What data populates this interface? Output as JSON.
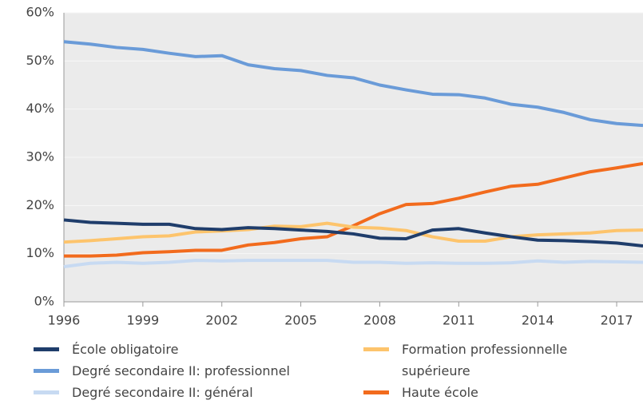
{
  "chart_data": {
    "type": "line",
    "x": [
      1996,
      1997,
      1998,
      1999,
      2000,
      2001,
      2002,
      2003,
      2004,
      2005,
      2006,
      2007,
      2008,
      2009,
      2010,
      2011,
      2012,
      2013,
      2014,
      2015,
      2016,
      2017,
      2018
    ],
    "xlim": [
      1996,
      2018
    ],
    "xticks": [
      1996,
      1999,
      2002,
      2005,
      2008,
      2011,
      2014,
      2017
    ],
    "ylim": [
      0,
      60
    ],
    "yticks": [
      {
        "value": 0,
        "label": "0%"
      },
      {
        "value": 10,
        "label": "10%"
      },
      {
        "value": 20,
        "label": "20%"
      },
      {
        "value": 30,
        "label": "30%"
      },
      {
        "value": 40,
        "label": "40%"
      },
      {
        "value": 50,
        "label": "50%"
      },
      {
        "value": 60,
        "label": "60%"
      }
    ],
    "grid": true,
    "series": [
      {
        "name": "École obligatoire",
        "color": "#1f3d6b",
        "values": [
          17,
          16.5,
          16.3,
          16.1,
          16.1,
          15.2,
          15,
          15.4,
          15.2,
          14.9,
          14.6,
          14.1,
          13.2,
          13.1,
          14.9,
          15.2,
          14.3,
          13.5,
          12.8,
          12.7,
          12.5,
          12.2,
          11.6
        ]
      },
      {
        "name": "Degré secondaire II: professionnel",
        "color": "#6a9bd8",
        "values": [
          54,
          53.5,
          52.8,
          52.4,
          51.6,
          50.9,
          51.1,
          49.2,
          48.4,
          48,
          47,
          46.5,
          45,
          44,
          43.1,
          43,
          42.3,
          41,
          40.4,
          39.3,
          37.8,
          37,
          36.6
        ]
      },
      {
        "name": "Degré secondaire II: général",
        "color": "#c7daf2",
        "values": [
          7.3,
          8,
          8.2,
          8,
          8.2,
          8.6,
          8.5,
          8.6,
          8.6,
          8.6,
          8.6,
          8.2,
          8.2,
          8,
          8.1,
          8,
          8,
          8.1,
          8.5,
          8.2,
          8.4,
          8.3,
          8.2
        ]
      },
      {
        "name": "Formation professionnelle supérieure",
        "color": "#fdc46c",
        "values": [
          12.4,
          12.7,
          13.1,
          13.5,
          13.7,
          14.5,
          14.7,
          15,
          15.7,
          15.6,
          16.3,
          15.5,
          15.3,
          14.8,
          13.5,
          12.6,
          12.6,
          13.5,
          13.9,
          14.1,
          14.3,
          14.8,
          14.9
        ]
      },
      {
        "name": "Haute école",
        "color": "#f26b1d",
        "values": [
          9.5,
          9.5,
          9.7,
          10.2,
          10.4,
          10.7,
          10.7,
          11.8,
          12.3,
          13.1,
          13.5,
          15.8,
          18.3,
          20.2,
          20.4,
          21.5,
          22.8,
          24,
          24.4,
          25.7,
          27,
          27.8,
          28.7
        ]
      }
    ]
  }
}
